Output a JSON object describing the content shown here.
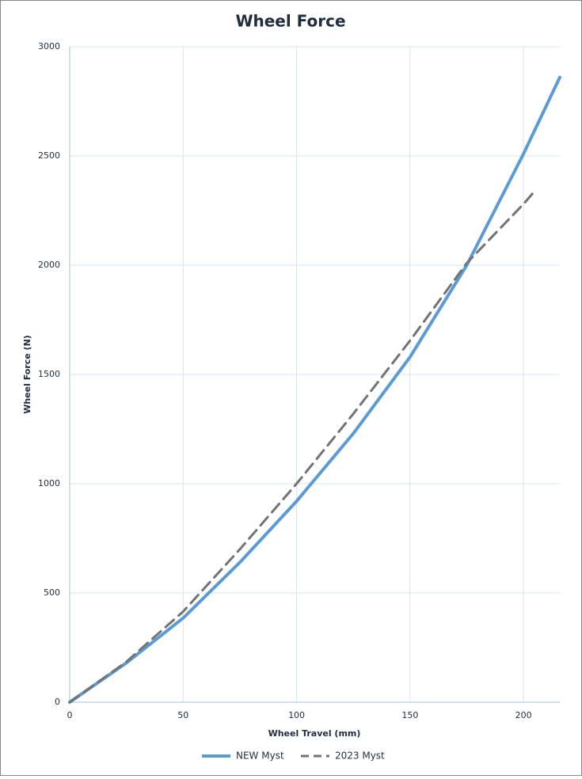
{
  "chart_data": {
    "type": "line",
    "title": "Wheel Force",
    "xlabel": "Wheel Travel (mm)",
    "ylabel": "Wheel Force (N)",
    "xlim": [
      0,
      216
    ],
    "xticks": [
      0,
      50,
      100,
      150,
      200
    ],
    "ylim": [
      0,
      3000
    ],
    "yticks": [
      0,
      500,
      1000,
      1500,
      2000,
      2500,
      3000
    ],
    "grid": true,
    "legend": "bottom",
    "series": [
      {
        "name": "NEW Myst",
        "color": "#5b9bd5",
        "dash": false,
        "x": [
          0,
          25,
          50,
          75,
          100,
          125,
          150,
          175,
          200,
          216
        ],
        "values": [
          0,
          180,
          385,
          640,
          920,
          1230,
          1580,
          2000,
          2510,
          2860
        ]
      },
      {
        "name": "2023 Myst",
        "color": "#737373",
        "dash": true,
        "x": [
          0,
          25,
          50,
          75,
          100,
          125,
          150,
          175,
          200,
          205
        ],
        "values": [
          0,
          185,
          415,
          700,
          1000,
          1320,
          1655,
          2010,
          2280,
          2340
        ]
      }
    ]
  }
}
